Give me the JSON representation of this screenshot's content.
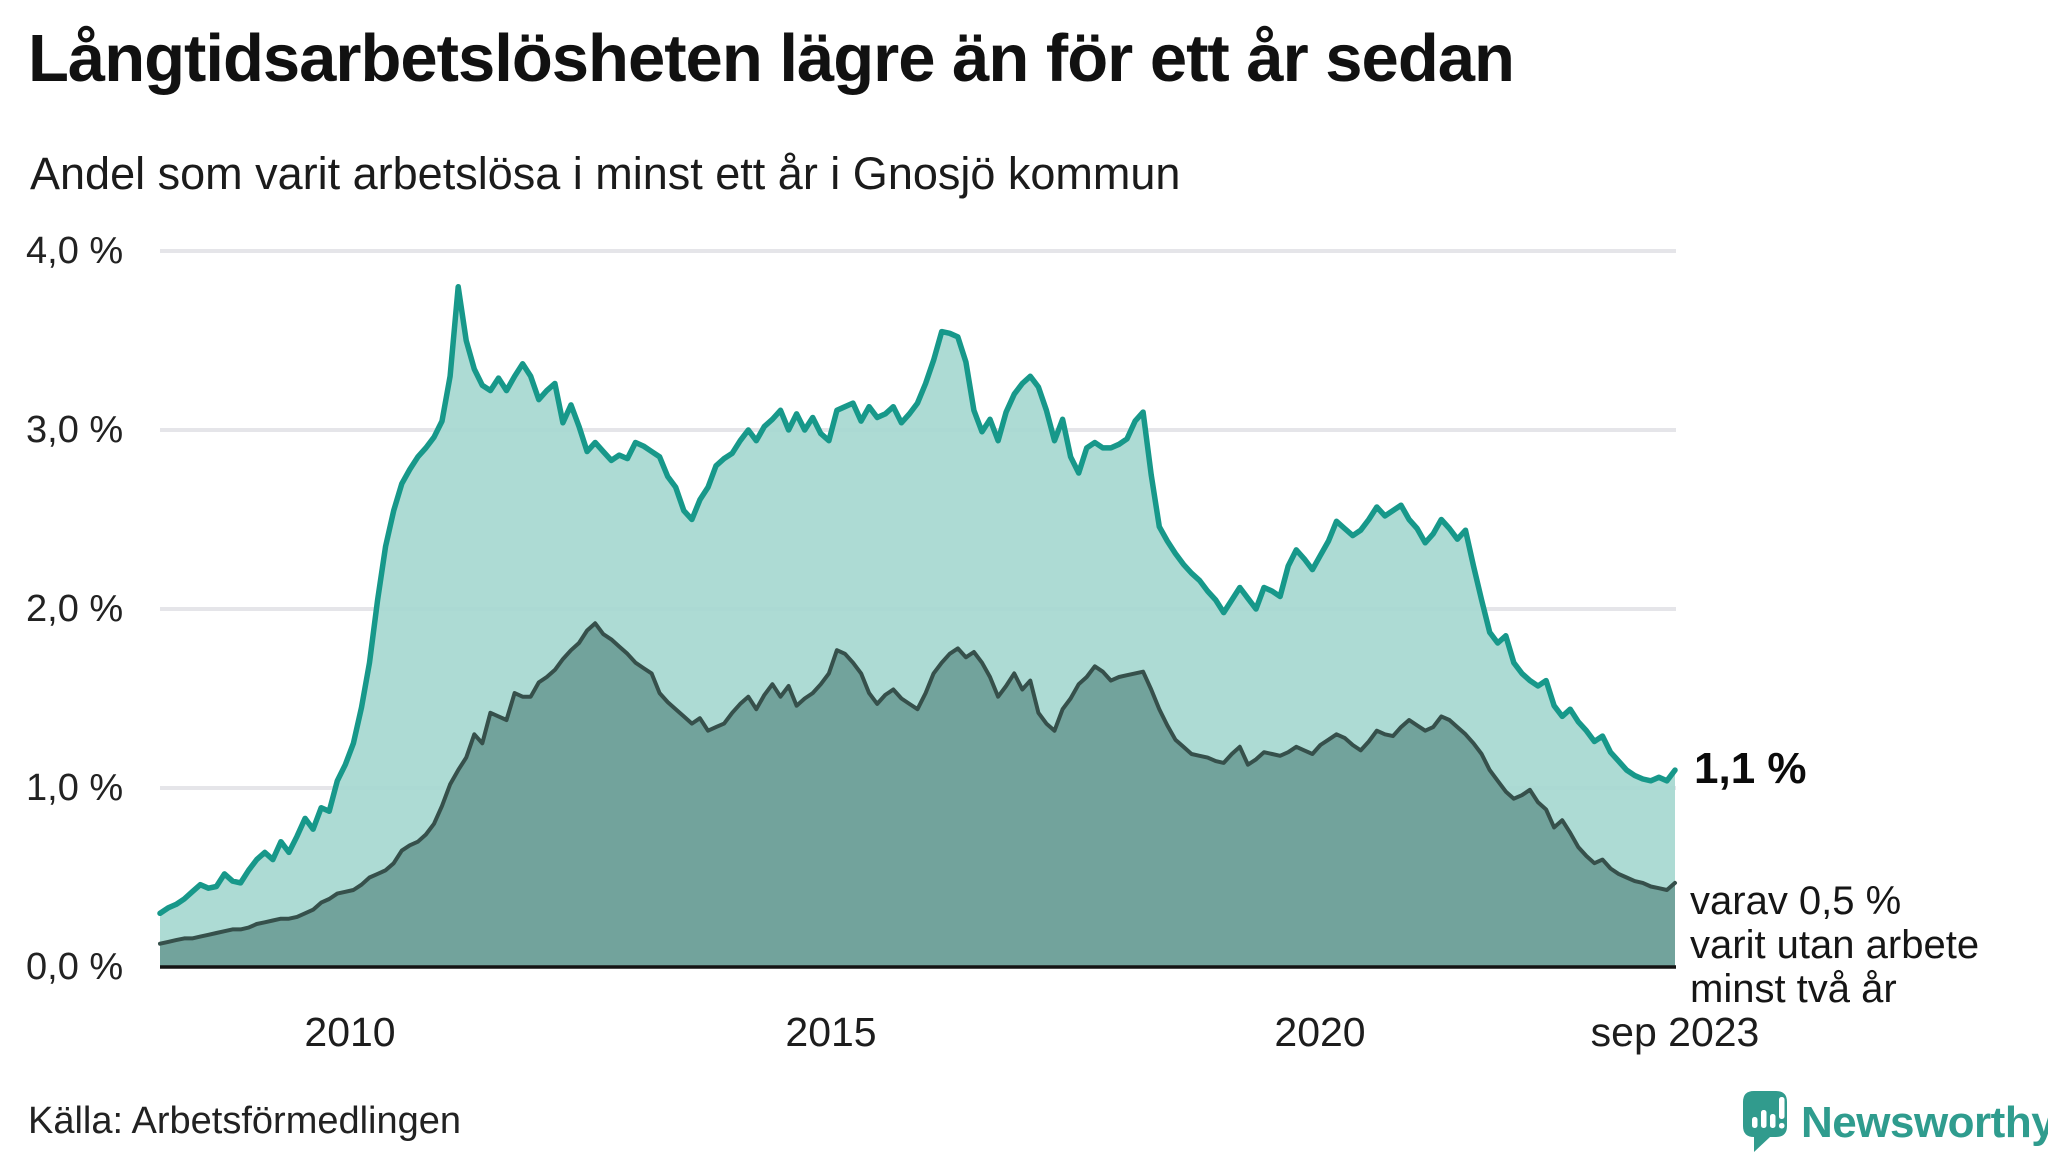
{
  "header": {
    "title": "Långtidsarbetslösheten lägre än för ett år sedan",
    "subtitle": "Andel som varit arbetslösa i minst ett år i Gnosjö kommun"
  },
  "chart_data": {
    "type": "area",
    "title": "Långtidsarbetslösheten lägre än för ett år sedan",
    "subtitle": "Andel som varit arbetslösa i minst ett år i Gnosjö kommun",
    "unit": "%",
    "x_start": "jan 2008",
    "x_end": "sep 2023",
    "points_per_year": 12,
    "ylim": [
      0,
      4
    ],
    "grid": "horizontal",
    "y_tick_labels": [
      "0,0 %",
      "1,0 %",
      "2,0 %",
      "3,0 %",
      "4,0 %"
    ],
    "y_tick_values": [
      0,
      1,
      2,
      3,
      4
    ],
    "x_tick_labels": [
      "2010",
      "2015",
      "2020",
      "sep 2023"
    ],
    "x_tick_month_index": [
      24,
      84,
      144,
      188
    ],
    "series": [
      {
        "name": "Andel arbetslösa minst ett år",
        "line_color": "#17988a",
        "fill_color": "#a7d8d1",
        "end_value_label": "1,1 %",
        "values": [
          0.3,
          0.33,
          0.35,
          0.38,
          0.42,
          0.46,
          0.44,
          0.45,
          0.52,
          0.48,
          0.47,
          0.54,
          0.6,
          0.64,
          0.6,
          0.7,
          0.64,
          0.73,
          0.83,
          0.77,
          0.89,
          0.87,
          1.04,
          1.13,
          1.25,
          1.45,
          1.7,
          2.05,
          2.35,
          2.55,
          2.7,
          2.78,
          2.85,
          2.9,
          2.96,
          3.05,
          3.3,
          3.8,
          3.5,
          3.34,
          3.25,
          3.22,
          3.29,
          3.22,
          3.3,
          3.37,
          3.3,
          3.17,
          3.22,
          3.26,
          3.04,
          3.14,
          3.02,
          2.88,
          2.93,
          2.88,
          2.83,
          2.86,
          2.84,
          2.93,
          2.91,
          2.88,
          2.85,
          2.74,
          2.68,
          2.55,
          2.5,
          2.61,
          2.68,
          2.8,
          2.84,
          2.87,
          2.94,
          3.0,
          2.94,
          3.02,
          3.06,
          3.11,
          3.0,
          3.09,
          3.0,
          3.07,
          2.98,
          2.94,
          3.11,
          3.13,
          3.15,
          3.05,
          3.13,
          3.07,
          3.09,
          3.13,
          3.04,
          3.09,
          3.15,
          3.26,
          3.39,
          3.55,
          3.54,
          3.52,
          3.38,
          3.11,
          2.99,
          3.06,
          2.94,
          3.1,
          3.2,
          3.26,
          3.3,
          3.24,
          3.11,
          2.94,
          3.06,
          2.85,
          2.76,
          2.9,
          2.93,
          2.9,
          2.9,
          2.92,
          2.95,
          3.05,
          3.1,
          2.75,
          2.46,
          2.38,
          2.31,
          2.25,
          2.2,
          2.16,
          2.1,
          2.05,
          1.98,
          2.05,
          2.12,
          2.06,
          2.0,
          2.12,
          2.1,
          2.07,
          2.24,
          2.33,
          2.28,
          2.22,
          2.3,
          2.38,
          2.49,
          2.45,
          2.41,
          2.44,
          2.5,
          2.57,
          2.52,
          2.55,
          2.58,
          2.5,
          2.45,
          2.37,
          2.42,
          2.5,
          2.45,
          2.39,
          2.44,
          2.24,
          2.05,
          1.87,
          1.81,
          1.85,
          1.7,
          1.64,
          1.6,
          1.57,
          1.6,
          1.46,
          1.4,
          1.44,
          1.37,
          1.32,
          1.26,
          1.29,
          1.2,
          1.15,
          1.1,
          1.07,
          1.05,
          1.04,
          1.06,
          1.04,
          1.1
        ]
      },
      {
        "name": "Andel arbetslösa minst två år",
        "line_color": "#36504b",
        "fill_color": "#6fa19a",
        "end_value_label": "varav 0,5 % varit utan arbete minst två år",
        "values": [
          0.13,
          0.14,
          0.15,
          0.16,
          0.16,
          0.17,
          0.18,
          0.19,
          0.2,
          0.21,
          0.21,
          0.22,
          0.24,
          0.25,
          0.26,
          0.27,
          0.27,
          0.28,
          0.3,
          0.32,
          0.36,
          0.38,
          0.41,
          0.42,
          0.43,
          0.46,
          0.5,
          0.52,
          0.54,
          0.58,
          0.65,
          0.68,
          0.7,
          0.74,
          0.8,
          0.9,
          1.02,
          1.1,
          1.17,
          1.3,
          1.25,
          1.42,
          1.4,
          1.38,
          1.53,
          1.51,
          1.51,
          1.59,
          1.62,
          1.66,
          1.72,
          1.77,
          1.81,
          1.88,
          1.92,
          1.86,
          1.83,
          1.79,
          1.75,
          1.7,
          1.67,
          1.64,
          1.53,
          1.48,
          1.44,
          1.4,
          1.36,
          1.39,
          1.32,
          1.34,
          1.36,
          1.42,
          1.47,
          1.51,
          1.44,
          1.52,
          1.58,
          1.51,
          1.57,
          1.46,
          1.5,
          1.53,
          1.58,
          1.64,
          1.77,
          1.75,
          1.7,
          1.64,
          1.53,
          1.47,
          1.52,
          1.55,
          1.5,
          1.47,
          1.44,
          1.53,
          1.64,
          1.7,
          1.75,
          1.78,
          1.73,
          1.76,
          1.7,
          1.62,
          1.51,
          1.57,
          1.64,
          1.55,
          1.6,
          1.42,
          1.36,
          1.32,
          1.44,
          1.5,
          1.58,
          1.62,
          1.68,
          1.65,
          1.6,
          1.62,
          1.63,
          1.64,
          1.65,
          1.55,
          1.44,
          1.35,
          1.27,
          1.23,
          1.19,
          1.18,
          1.17,
          1.15,
          1.14,
          1.19,
          1.23,
          1.13,
          1.16,
          1.2,
          1.19,
          1.18,
          1.2,
          1.23,
          1.21,
          1.19,
          1.24,
          1.27,
          1.3,
          1.28,
          1.24,
          1.21,
          1.26,
          1.32,
          1.3,
          1.29,
          1.34,
          1.38,
          1.35,
          1.32,
          1.34,
          1.4,
          1.38,
          1.34,
          1.3,
          1.25,
          1.19,
          1.1,
          1.04,
          0.98,
          0.94,
          0.96,
          0.99,
          0.92,
          0.88,
          0.78,
          0.82,
          0.75,
          0.67,
          0.62,
          0.58,
          0.6,
          0.55,
          0.52,
          0.5,
          0.48,
          0.47,
          0.45,
          0.44,
          0.43,
          0.47
        ]
      }
    ],
    "annotations": {
      "total_end": "1,1 %",
      "two_year_line1": "varav 0,5 %",
      "two_year_line2": "varit utan arbete",
      "two_year_line3": "minst två år"
    }
  },
  "footer": {
    "source": "Källa: Arbetsförmedlingen",
    "brand": "Newsworthy"
  },
  "colors": {
    "line_total": "#17988a",
    "fill_total": "#a7d8d1",
    "line_two_year": "#36504b",
    "fill_two_year": "#6fa19a",
    "gridline": "#e5e5e9",
    "axis": "#141414",
    "brand_teal": "#2f9c8e",
    "text": "#111111"
  }
}
